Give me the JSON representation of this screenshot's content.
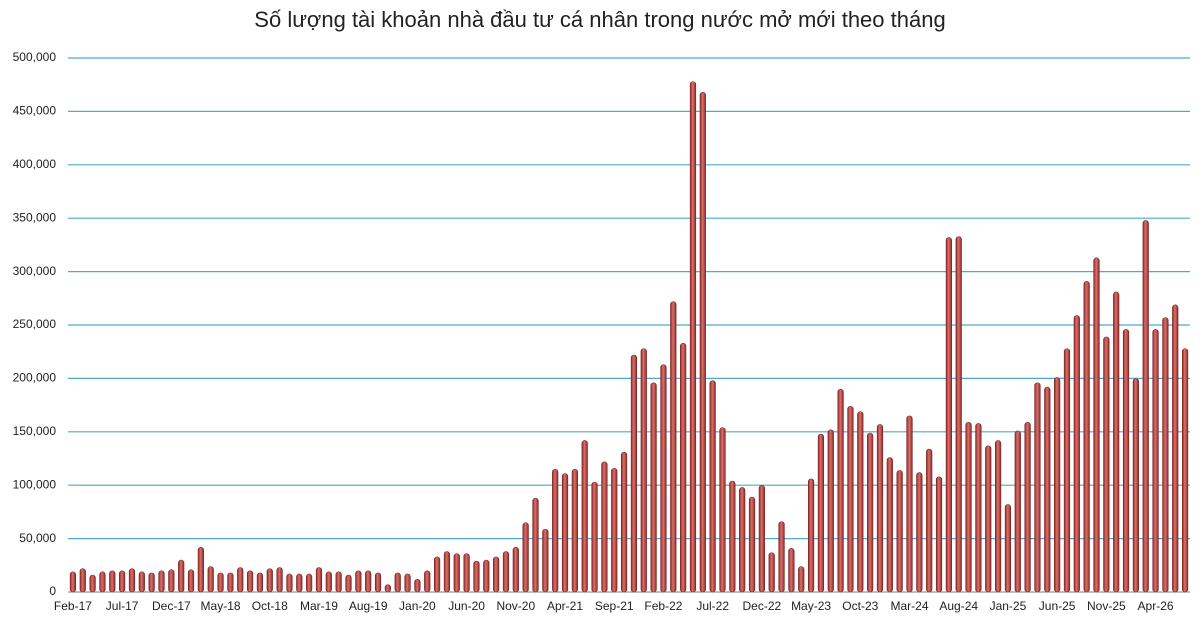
{
  "chart_data": {
    "type": "bar",
    "title": "Số lượng tài khoản nhà đầu tư cá nhân trong nước mở mới theo tháng",
    "categories": [
      "Feb-17",
      null,
      null,
      null,
      null,
      "Jul-17",
      null,
      null,
      null,
      null,
      "Dec-17",
      null,
      null,
      null,
      null,
      "May-18",
      null,
      null,
      null,
      null,
      "Oct-18",
      null,
      null,
      null,
      null,
      "Mar-19",
      null,
      null,
      null,
      null,
      "Aug-19",
      null,
      null,
      null,
      null,
      "Jan-20",
      null,
      null,
      null,
      null,
      "Jun-20",
      null,
      null,
      null,
      null,
      "Nov-20",
      null,
      null,
      null,
      null,
      "Apr-21",
      null,
      null,
      null,
      null,
      "Sep-21",
      null,
      null,
      null,
      null,
      "Feb-22",
      null,
      null,
      null,
      null,
      "Jul-22",
      null,
      null,
      null,
      null,
      "Dec-22",
      null,
      null,
      null,
      null,
      "May-23",
      null,
      null,
      null,
      null,
      "Oct-23",
      null,
      null,
      null,
      null,
      "Mar-24",
      null,
      null,
      null,
      null,
      "Aug-24",
      null,
      null,
      null,
      null,
      "Jan-25",
      null,
      null,
      null,
      null,
      "Jun-25",
      null,
      null,
      null,
      null,
      "Nov-25",
      null,
      null,
      null,
      null,
      "Apr-26",
      null,
      null,
      null
    ],
    "values": [
      17000,
      20000,
      14000,
      17000,
      18000,
      18000,
      20000,
      17000,
      16000,
      18000,
      19000,
      28000,
      19000,
      40000,
      22000,
      16000,
      16000,
      21000,
      18000,
      16000,
      20000,
      21000,
      15000,
      15000,
      15000,
      21000,
      17000,
      17000,
      14000,
      18000,
      18000,
      16000,
      5000,
      16000,
      15000,
      10000,
      18000,
      31000,
      36000,
      34000,
      34000,
      27000,
      28000,
      31000,
      36000,
      40000,
      63000,
      86000,
      57000,
      113000,
      109000,
      113000,
      140000,
      101000,
      120000,
      114000,
      129000,
      220000,
      226000,
      194000,
      211000,
      270000,
      231000,
      476000,
      466000,
      196000,
      152000,
      102000,
      96000,
      87000,
      98000,
      35000,
      64000,
      39000,
      22000,
      104000,
      146000,
      150000,
      188000,
      172000,
      167000,
      147000,
      155000,
      124000,
      112000,
      163000,
      110000,
      132000,
      106000,
      330000,
      331000,
      157000,
      156000,
      135000,
      140000,
      80000,
      149000,
      157000,
      194000,
      190000,
      199000,
      226000,
      257000,
      289000,
      311000,
      237000,
      279000,
      244000,
      198000,
      346000,
      244000,
      255000,
      267000,
      226000
    ],
    "color": "#c0504d",
    "ylim": [
      0,
      500000
    ],
    "yticks": [
      0,
      {
        "value": 50000,
        "label": "50,000"
      },
      {
        "value": 100000,
        "label": "100,000"
      },
      {
        "value": 150000,
        "label": "150,000"
      },
      {
        "value": 200000,
        "label": "200,000"
      },
      {
        "value": 250000,
        "label": "250,000"
      },
      {
        "value": 300000,
        "label": "300,000"
      },
      {
        "value": 350000,
        "label": "350,000"
      },
      {
        "value": 400000,
        "label": "400,000"
      },
      {
        "value": 450000,
        "label": "450,000"
      },
      {
        "value": 500000,
        "label": "500,000"
      }
    ],
    "grid": true
  }
}
